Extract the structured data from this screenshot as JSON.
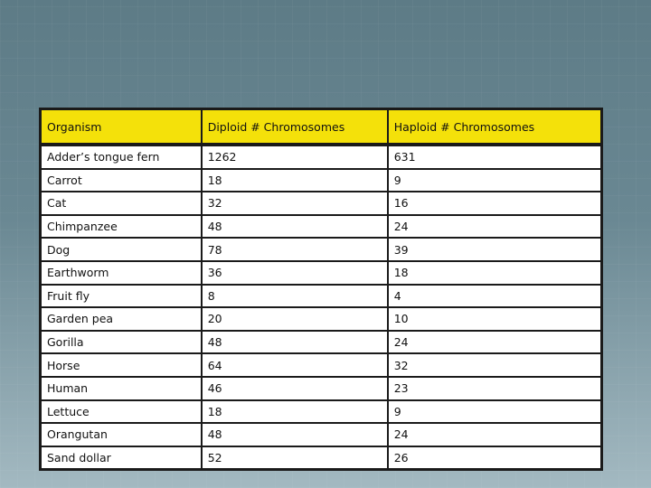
{
  "table": {
    "headers": [
      "Organism",
      "Diploid # Chromosomes",
      "Haploid # Chromosomes"
    ],
    "rows": [
      [
        "Adder’s tongue fern",
        "1262",
        "631"
      ],
      [
        "Carrot",
        "18",
        "9"
      ],
      [
        "Cat",
        "32",
        "16"
      ],
      [
        "Chimpanzee",
        "48",
        "24"
      ],
      [
        "Dog",
        "78",
        "39"
      ],
      [
        "Earthworm",
        "36",
        "18"
      ],
      [
        "Fruit fly",
        "8",
        "4"
      ],
      [
        "Garden pea",
        "20",
        "10"
      ],
      [
        "Gorilla",
        "48",
        "24"
      ],
      [
        "Horse",
        "64",
        "32"
      ],
      [
        "Human",
        "46",
        "23"
      ],
      [
        "Lettuce",
        "18",
        "9"
      ],
      [
        "Orangutan",
        "48",
        "24"
      ],
      [
        "Sand dollar",
        "52",
        "26"
      ]
    ]
  },
  "colors": {
    "header_bg": "#f4e10a",
    "cell_bg": "#ffffff",
    "border": "#1a1a1a",
    "slide_bg": "#6a8893"
  }
}
